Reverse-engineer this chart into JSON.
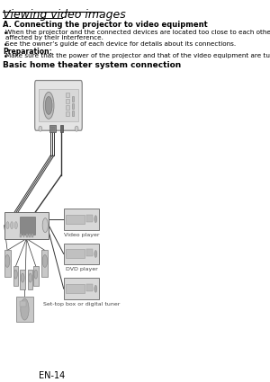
{
  "page_bg": "#ffffff",
  "title_text": "Viewing video images",
  "section_a_title": "A. Connecting the projector to video equipment",
  "bullet1a": "When the projector and the connected devices are located too close to each other, the projected image may be",
  "bullet1b": "affected by their interference.",
  "bullet2": "See the owner’s guide of each device for details about its connections.",
  "prep_label": "Preparation:",
  "prep_bullet": "Make sure that the power of the projector and that of the video equipment are turned off.",
  "subsection_title": "Basic home theater system connection",
  "device_labels": [
    "Video player",
    "DVD player",
    "Set-top box or digital tuner"
  ],
  "page_number": "EN-14",
  "cable_color": "#333333",
  "device_fc": "#d8d8d8",
  "device_ec": "#666666",
  "proj_fc": "#e4e4e4",
  "rcv_fc": "#d5d5d5"
}
